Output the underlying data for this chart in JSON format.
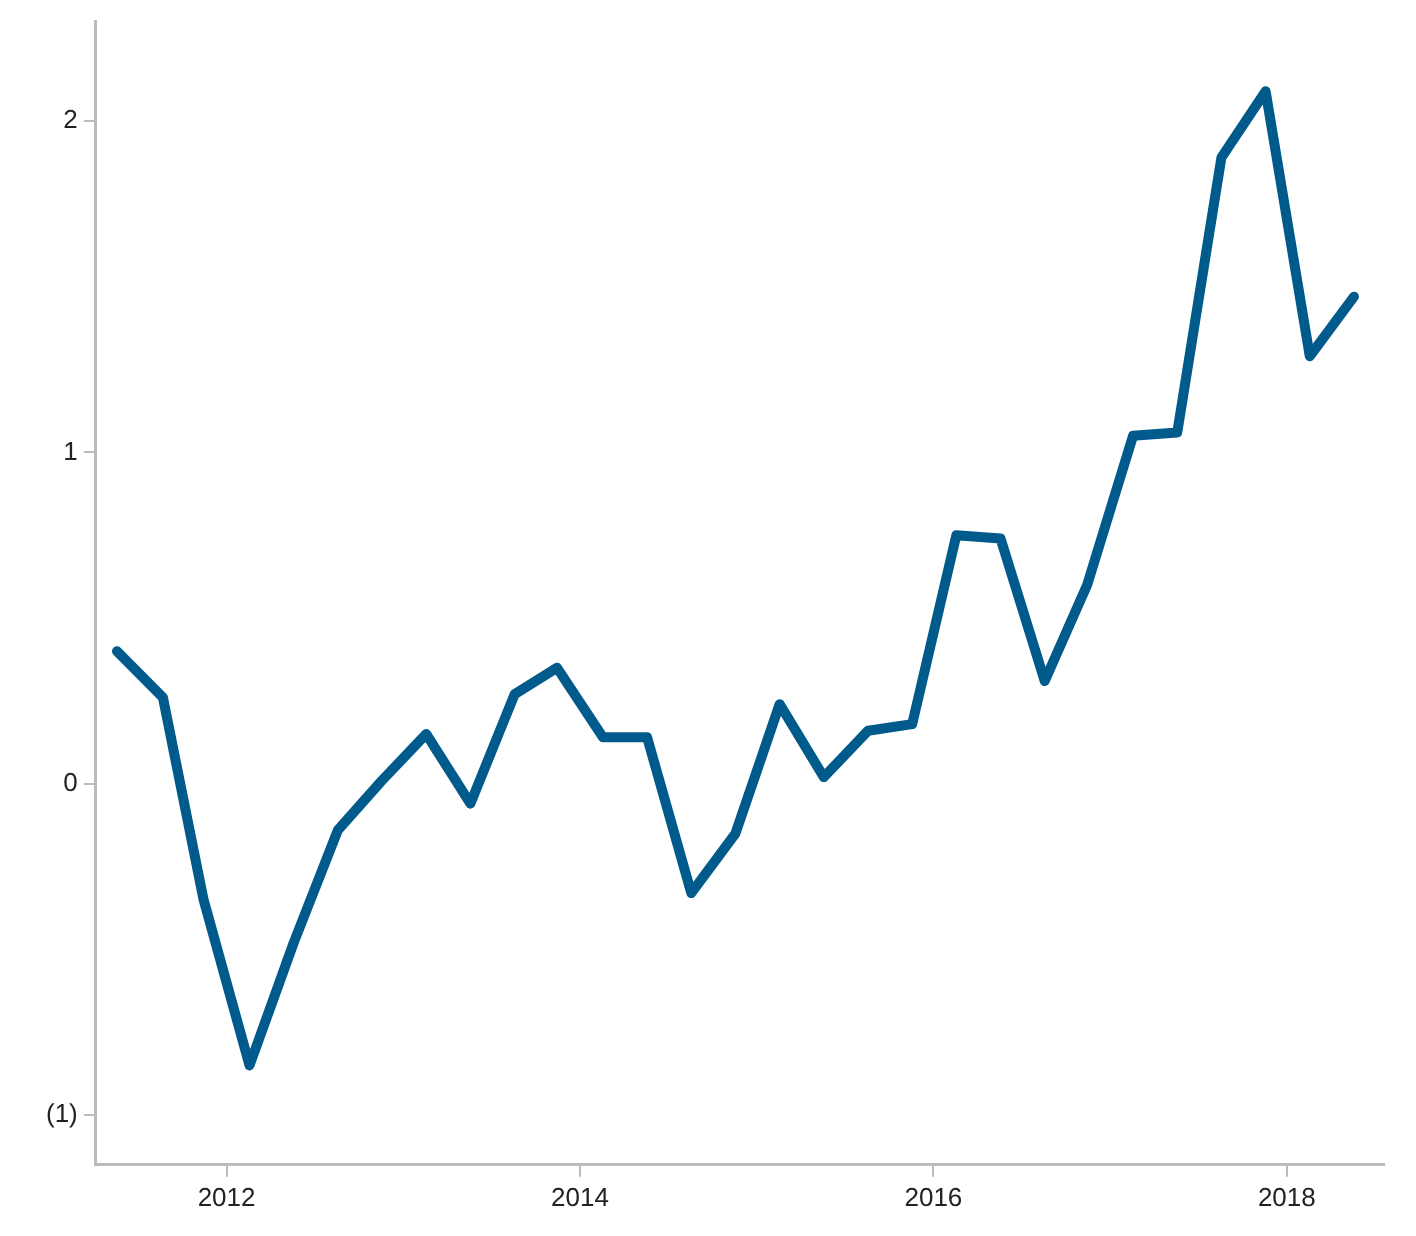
{
  "chart_data": {
    "type": "line",
    "x": [
      2011.38,
      2011.64,
      2011.87,
      2012.13,
      2012.38,
      2012.63,
      2012.88,
      2013.13,
      2013.38,
      2013.63,
      2013.87,
      2014.13,
      2014.38,
      2014.63,
      2014.88,
      2015.13,
      2015.38,
      2015.63,
      2015.88,
      2016.13,
      2016.38,
      2016.63,
      2016.87,
      2017.13,
      2017.38,
      2017.63,
      2017.88,
      2018.13,
      2018.38
    ],
    "series": [
      {
        "color": "#005a8c",
        "values": [
          0.4,
          0.26,
          -0.35,
          -0.85,
          -0.48,
          -0.14,
          0.01,
          0.15,
          -0.06,
          0.27,
          0.35,
          0.14,
          0.14,
          -0.33,
          -0.15,
          0.24,
          0.02,
          0.16,
          0.18,
          0.75,
          0.74,
          0.31,
          0.6,
          1.05,
          1.06,
          1.89,
          2.09,
          1.29,
          1.47
        ]
      }
    ],
    "xlim": [
      2011.26,
      2018.55
    ],
    "xticks": [
      2012,
      2014,
      2016,
      2018
    ],
    "ylim": [
      -1.15,
      2.3
    ],
    "yticks": [
      {
        "value": -1,
        "label": "(1)"
      },
      0,
      1,
      2
    ],
    "grid": false,
    "legend": false,
    "marker": "none",
    "line_style": "solid"
  }
}
